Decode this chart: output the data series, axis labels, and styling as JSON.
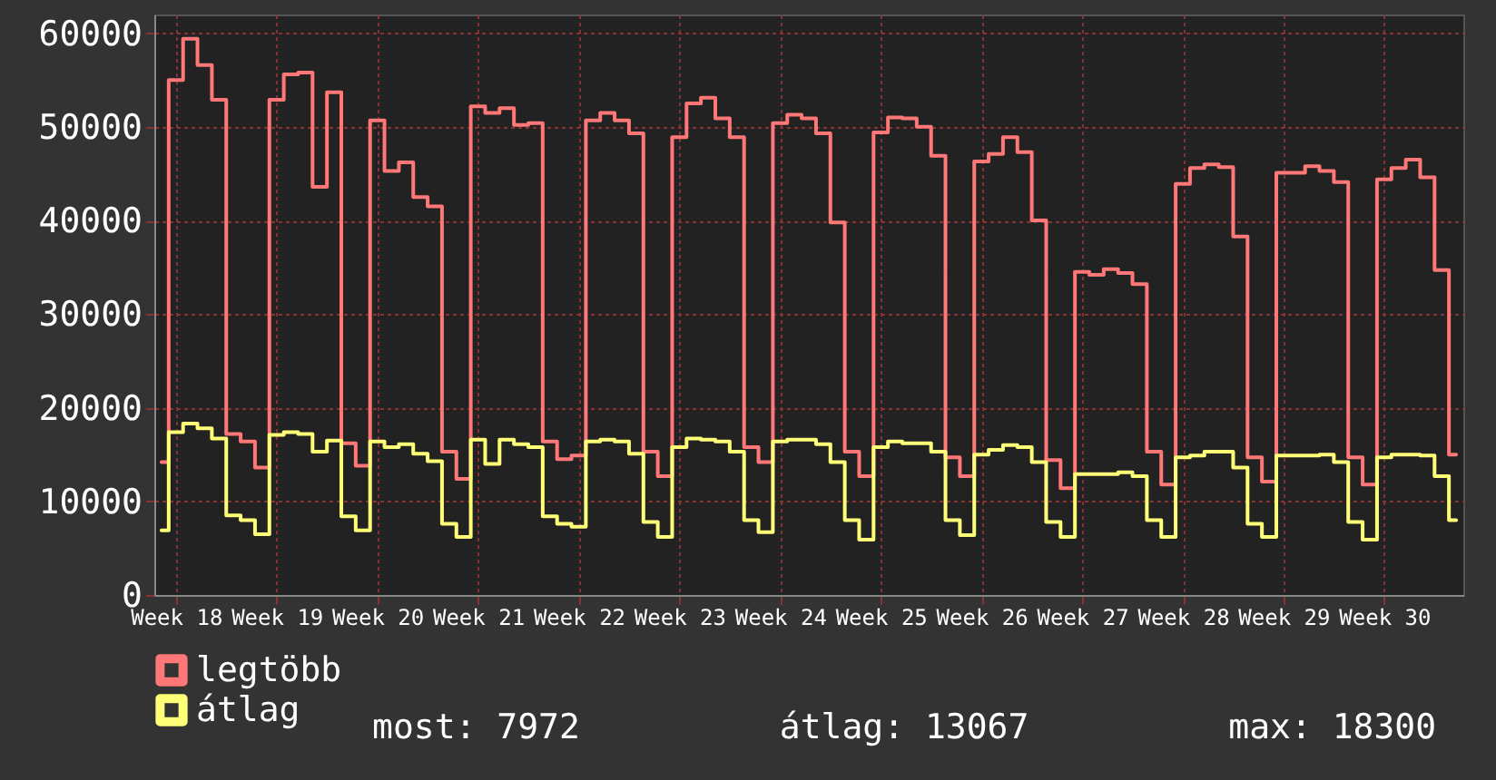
{
  "chart_data": {
    "type": "step",
    "categories": [
      null,
      "Week 18",
      null,
      null,
      null,
      null,
      null,
      null,
      "Week 19",
      null,
      null,
      null,
      null,
      null,
      null,
      "Week 20",
      null,
      null,
      null,
      null,
      null,
      null,
      "Week 21",
      null,
      null,
      null,
      null,
      null,
      null,
      "Week 22",
      null,
      null,
      null,
      null,
      null,
      null,
      "Week 23",
      null,
      null,
      null,
      null,
      null,
      null,
      "Week 24",
      null,
      null,
      null,
      null,
      null,
      null,
      "Week 25",
      null,
      null,
      null,
      null,
      null,
      null,
      "Week 26",
      null,
      null,
      null,
      null,
      null,
      null,
      "Week 27",
      null,
      null,
      null,
      null,
      null,
      null,
      "Week 28",
      null,
      null,
      null,
      null,
      null,
      null,
      "Week 29",
      null,
      null,
      null,
      null,
      null,
      null,
      "Week 30",
      null,
      null,
      null,
      null,
      null
    ],
    "series": [
      {
        "name": "legtöbb",
        "color": "#ff7777",
        "values": [
          14200,
          55000,
          59400,
          56600,
          52900,
          17200,
          16400,
          13600,
          52900,
          55600,
          55800,
          43600,
          53700,
          16200,
          13800,
          50700,
          45300,
          46200,
          42500,
          41500,
          15300,
          12400,
          52200,
          51500,
          52000,
          50200,
          50400,
          16400,
          14500,
          14900,
          50700,
          51500,
          50700,
          49300,
          15300,
          12700,
          48900,
          52500,
          53100,
          50900,
          48900,
          15800,
          14200,
          50400,
          51300,
          50900,
          49300,
          39800,
          15300,
          12700,
          49400,
          51000,
          50900,
          50000,
          46900,
          14700,
          12700,
          46300,
          47100,
          48900,
          47300,
          40000,
          14400,
          11400,
          34500,
          34200,
          34800,
          34400,
          33200,
          15300,
          11800,
          43900,
          45600,
          46000,
          45700,
          38300,
          14700,
          12100,
          45100,
          45100,
          45800,
          45300,
          44100,
          14700,
          11800,
          44400,
          45600,
          46500,
          44600,
          34700,
          15000
        ]
      },
      {
        "name": "átlag",
        "color": "#ffff77",
        "values": [
          6900,
          17400,
          18300,
          17800,
          16700,
          8500,
          8000,
          6500,
          17100,
          17400,
          17200,
          15300,
          16500,
          8400,
          6900,
          16400,
          15800,
          16100,
          15100,
          14300,
          7600,
          6200,
          16600,
          14000,
          16600,
          16100,
          15800,
          8400,
          7600,
          7300,
          16400,
          16600,
          16400,
          15100,
          7800,
          6200,
          15800,
          16700,
          16600,
          16400,
          15300,
          8000,
          6700,
          16400,
          16600,
          16600,
          16100,
          14200,
          8000,
          5900,
          15800,
          16400,
          16200,
          16200,
          15300,
          8000,
          6400,
          15000,
          15500,
          16000,
          15800,
          14200,
          7800,
          6200,
          12900,
          12900,
          12900,
          13100,
          12700,
          8000,
          6200,
          14700,
          14900,
          15300,
          15300,
          13600,
          7600,
          6200,
          14900,
          14900,
          14900,
          15000,
          14200,
          7800,
          5900,
          14700,
          15000,
          15000,
          14900,
          12700,
          8000
        ]
      }
    ],
    "ylim": [
      0,
      62000
    ],
    "yticks": [
      0,
      10000,
      20000,
      30000,
      40000,
      50000,
      60000
    ],
    "grid": true,
    "legend": "bottom left",
    "annotations": [
      "most: 7972",
      "átlag: 13067",
      "max: 18300"
    ]
  }
}
